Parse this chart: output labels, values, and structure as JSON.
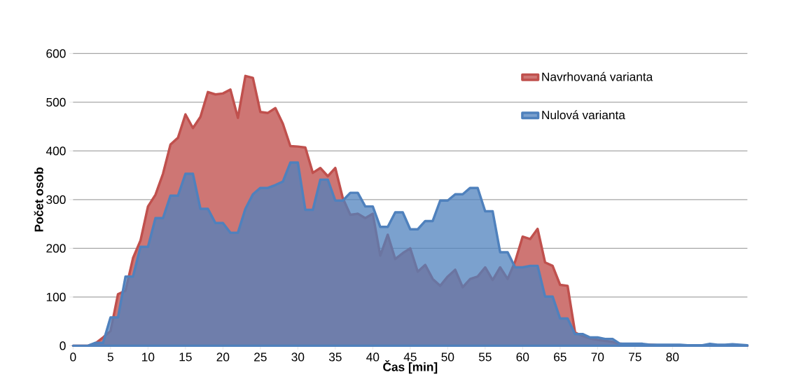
{
  "chart_data": {
    "type": "area",
    "xlabel": "Čas [min]",
    "ylabel": "Počet osob",
    "x": [
      0,
      1,
      2,
      3,
      4,
      5,
      6,
      7,
      8,
      9,
      10,
      11,
      12,
      13,
      14,
      15,
      16,
      17,
      18,
      19,
      20,
      21,
      22,
      23,
      24,
      25,
      26,
      27,
      28,
      29,
      30,
      31,
      32,
      33,
      34,
      35,
      36,
      37,
      38,
      39,
      40,
      41,
      42,
      43,
      44,
      45,
      46,
      47,
      48,
      49,
      50,
      51,
      52,
      53,
      54,
      55,
      56,
      57,
      58,
      59,
      60,
      61,
      62,
      63,
      64,
      65,
      66,
      67,
      68,
      69,
      70,
      71,
      72,
      73,
      74,
      75,
      76,
      77,
      78,
      79,
      80,
      81,
      82,
      83,
      84,
      85,
      86,
      87,
      88,
      89,
      90
    ],
    "xlim": [
      0,
      90
    ],
    "xticks": [
      0,
      5,
      10,
      15,
      20,
      25,
      30,
      35,
      40,
      45,
      50,
      55,
      60,
      65,
      70,
      75,
      80,
      {
        "value": 85,
        "label": null
      },
      {
        "value": 90,
        "label": null
      }
    ],
    "ylim": [
      0,
      600
    ],
    "yticks": [
      0,
      100,
      200,
      300,
      400,
      500,
      600
    ],
    "grid": "y",
    "legend": "top right",
    "series": [
      {
        "name": "Navrhovaná varianta",
        "color": "#c0504d",
        "values": [
          0,
          0,
          0,
          5,
          17,
          30,
          106,
          113,
          180,
          216,
          286,
          310,
          353,
          413,
          427,
          475,
          447,
          470,
          521,
          516,
          518,
          526,
          468,
          554,
          550,
          480,
          478,
          488,
          456,
          410,
          409,
          407,
          355,
          365,
          348,
          365,
          303,
          269,
          271,
          262,
          271,
          185,
          228,
          178,
          190,
          200,
          152,
          166,
          137,
          123,
          142,
          156,
          120,
          137,
          142,
          161,
          135,
          161,
          137,
          173,
          224,
          219,
          240,
          171,
          164,
          125,
          123,
          27,
          20,
          15,
          12,
          10,
          8,
          4,
          3,
          3,
          2,
          2,
          1,
          1,
          1,
          1,
          1,
          1,
          1,
          1,
          1,
          1,
          1,
          1,
          0
        ]
      },
      {
        "name": "Nulová varianta",
        "color": "#4f81bd",
        "values": [
          0,
          0,
          0,
          6,
          6,
          58,
          58,
          142,
          142,
          203,
          203,
          262,
          262,
          308,
          308,
          353,
          353,
          281,
          281,
          252,
          252,
          232,
          232,
          281,
          311,
          324,
          324,
          330,
          337,
          376,
          376,
          279,
          279,
          341,
          341,
          298,
          298,
          314,
          314,
          286,
          286,
          244,
          244,
          274,
          274,
          239,
          239,
          256,
          256,
          298,
          298,
          311,
          311,
          324,
          324,
          276,
          276,
          192,
          192,
          161,
          161,
          164,
          164,
          101,
          101,
          56,
          56,
          24,
          24,
          17,
          17,
          14,
          14,
          4,
          4,
          4,
          4,
          2,
          2,
          2,
          2,
          2,
          1,
          1,
          1,
          4,
          2,
          2,
          3,
          2,
          1
        ]
      }
    ]
  }
}
